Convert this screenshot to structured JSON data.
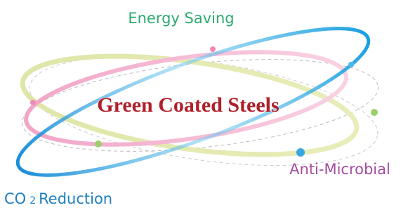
{
  "title": "Green Coated Steels",
  "labels": {
    "energy": "Energy Saving",
    "microbial": "Anti-Microbial",
    "co2": {
      "prefix": "CO",
      "subscript": "2",
      "suffix": "Reduction"
    }
  }
}
